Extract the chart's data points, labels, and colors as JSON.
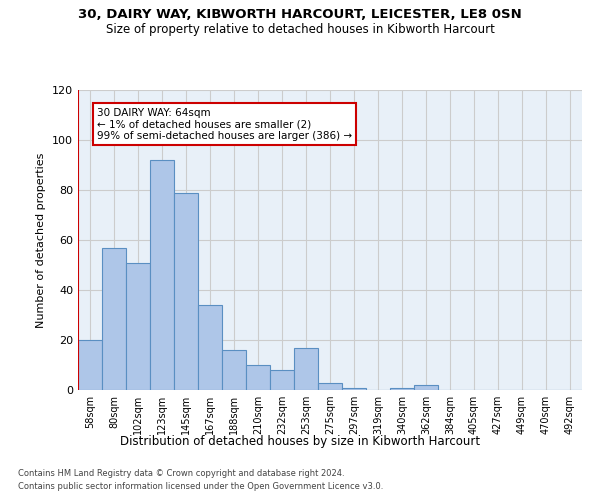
{
  "title": "30, DAIRY WAY, KIBWORTH HARCOURT, LEICESTER, LE8 0SN",
  "subtitle": "Size of property relative to detached houses in Kibworth Harcourt",
  "xlabel": "Distribution of detached houses by size in Kibworth Harcourt",
  "ylabel": "Number of detached properties",
  "categories": [
    "58sqm",
    "80sqm",
    "102sqm",
    "123sqm",
    "145sqm",
    "167sqm",
    "188sqm",
    "210sqm",
    "232sqm",
    "253sqm",
    "275sqm",
    "297sqm",
    "319sqm",
    "340sqm",
    "362sqm",
    "384sqm",
    "405sqm",
    "427sqm",
    "449sqm",
    "470sqm",
    "492sqm"
  ],
  "values": [
    20,
    57,
    51,
    92,
    79,
    34,
    16,
    10,
    8,
    17,
    3,
    1,
    0,
    1,
    2,
    0,
    0,
    0,
    0,
    0,
    0
  ],
  "bar_color": "#aec6e8",
  "bar_edge_color": "#5a8fc2",
  "highlight_line_color": "#cc0000",
  "ylim": [
    0,
    120
  ],
  "yticks": [
    0,
    20,
    40,
    60,
    80,
    100,
    120
  ],
  "annotation_text": "30 DAIRY WAY: 64sqm\n← 1% of detached houses are smaller (2)\n99% of semi-detached houses are larger (386) →",
  "annotation_box_color": "#ffffff",
  "annotation_box_edge": "#cc0000",
  "grid_color": "#cccccc",
  "bg_color": "#e8f0f8",
  "footer1": "Contains HM Land Registry data © Crown copyright and database right 2024.",
  "footer2": "Contains public sector information licensed under the Open Government Licence v3.0."
}
